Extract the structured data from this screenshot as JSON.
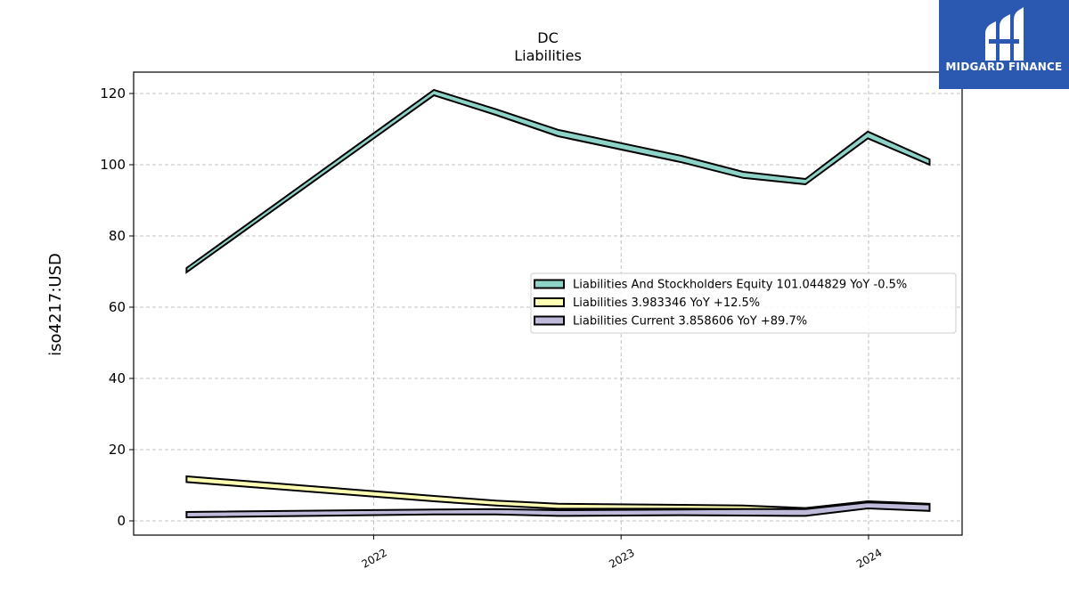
{
  "brand": {
    "name": "MIDGARD FINANCE",
    "logo_icon": "midgard-logo-icon"
  },
  "chart_data": {
    "type": "area",
    "title": "DC",
    "subtitle": "Liabilities",
    "ylabel": "iso4217:USD",
    "xlabel": "",
    "ylim": [
      -4,
      126
    ],
    "xlim": [
      "2021-01-12",
      "2024-05-18"
    ],
    "yticks": [
      0,
      20,
      40,
      60,
      80,
      100,
      120
    ],
    "xticks": [
      "2022-01-01",
      "2023-01-01",
      "2024-01-01"
    ],
    "xtick_labels": [
      "2022",
      "2023",
      "2024"
    ],
    "grid": true,
    "legend_position": "center-right",
    "series": [
      {
        "name": "Liabilities And Stockholders Equity",
        "legend": "Liabilities And Stockholders Equity  101.044829 YoY -0.5%",
        "color": "#8dd3c7",
        "x": [
          "2021-03-31",
          "2022-03-31",
          "2022-06-30",
          "2022-09-30",
          "2023-03-31",
          "2023-06-30",
          "2023-09-30",
          "2023-12-31",
          "2024-03-31"
        ],
        "lower": [
          69.8,
          119.5,
          114.0,
          108.0,
          100.7,
          96.3,
          94.5,
          107.4,
          100.0
        ],
        "upper": [
          71.0,
          121.0,
          115.6,
          109.8,
          102.5,
          98.0,
          96.0,
          109.3,
          101.5
        ]
      },
      {
        "name": "Liabilities",
        "legend": "Liabilities  3.983346 YoY +12.5%",
        "color": "#ffffb3",
        "x": [
          "2021-03-31",
          "2022-03-31",
          "2022-06-30",
          "2022-09-30",
          "2023-03-31",
          "2023-06-30",
          "2023-09-30",
          "2023-12-31",
          "2024-03-31"
        ],
        "lower": [
          10.9,
          5.5,
          4.3,
          3.4,
          3.4,
          3.3,
          3.3,
          5.0,
          4.0
        ],
        "upper": [
          12.5,
          7.0,
          5.7,
          4.8,
          4.5,
          4.3,
          3.6,
          5.5,
          4.8
        ]
      },
      {
        "name": "Liabilities Current",
        "legend": "Liabilities Current  3.858606 YoY +89.7%",
        "color": "#bebada",
        "x": [
          "2021-03-31",
          "2022-03-31",
          "2022-06-30",
          "2022-09-30",
          "2023-03-31",
          "2023-06-30",
          "2023-09-30",
          "2023-12-31",
          "2024-03-31"
        ],
        "lower": [
          1.0,
          1.8,
          1.8,
          1.4,
          1.6,
          1.5,
          1.4,
          3.5,
          2.8
        ],
        "upper": [
          2.5,
          3.2,
          3.3,
          3.0,
          3.2,
          3.3,
          3.3,
          5.2,
          4.6
        ]
      }
    ]
  }
}
